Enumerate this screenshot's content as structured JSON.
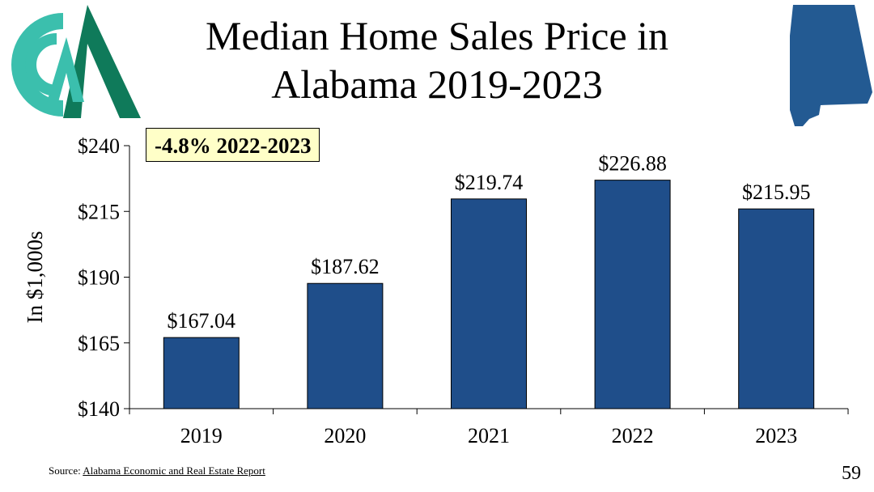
{
  "slide": {
    "title_line1": "Median Home Sales Price in",
    "title_line2": "Alabama 2019-2023",
    "badge": "-4.8% 2022-2023",
    "source_prefix": "Source: ",
    "source_link": "Alabama Economic and Real Estate Report",
    "page_number": "59"
  },
  "colors": {
    "bar": "#1f4e8a",
    "logo_teal": "#3bbfad",
    "logo_green": "#0f7a5a",
    "state": "#235a92"
  },
  "chart_data": {
    "type": "bar",
    "categories": [
      "2019",
      "2020",
      "2021",
      "2022",
      "2023"
    ],
    "values": [
      167.04,
      187.62,
      219.74,
      226.88,
      215.95
    ],
    "value_labels": [
      "$167.04",
      "$187.62",
      "$219.74",
      "$226.88",
      "$215.95"
    ],
    "ylabel": "In $1,000s",
    "ylim": [
      140,
      240
    ],
    "yticks": [
      140,
      165,
      190,
      215,
      240
    ],
    "ytick_labels": [
      "$140",
      "$165",
      "$190",
      "$215",
      "$240"
    ],
    "grid": false
  }
}
